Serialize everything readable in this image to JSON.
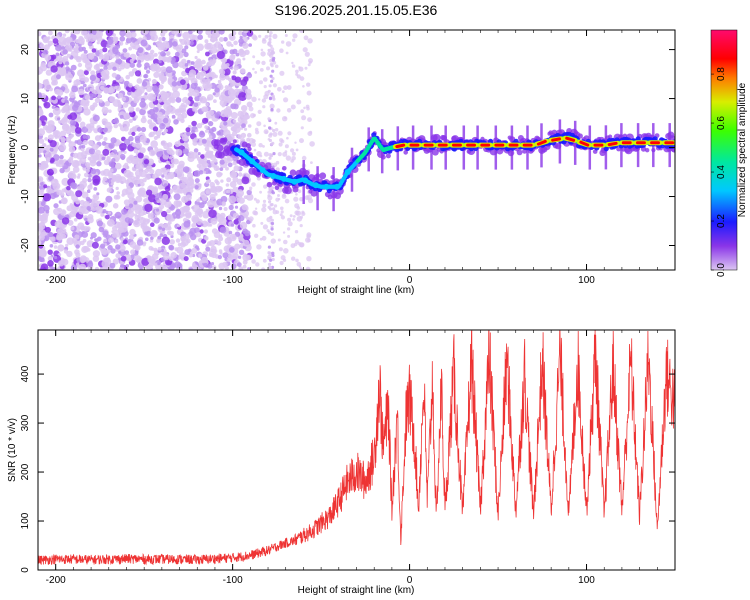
{
  "title": "S196.2025.201.15.05.E36",
  "chart_data": [
    {
      "type": "heatmap",
      "xlabel": "Height of straight line (km)",
      "ylabel": "Frequency (Hz)",
      "xlim": [
        -210,
        150
      ],
      "ylim": [
        -25,
        24
      ],
      "xticks": [
        -200,
        -100,
        0,
        100
      ],
      "yticks": [
        -20,
        -10,
        0,
        10,
        20
      ],
      "ridge": {
        "x": [
          -100,
          -95,
          -90,
          -85,
          -80,
          -75,
          -70,
          -65,
          -60,
          -55,
          -50,
          -45,
          -40,
          -35,
          -30,
          -25,
          -20,
          -15,
          -10,
          -5,
          0,
          10,
          20,
          30,
          40,
          50,
          60,
          70,
          80,
          90,
          100,
          110,
          120,
          130,
          140,
          150
        ],
        "y": [
          0,
          -1,
          -2.5,
          -4,
          -5.5,
          -6,
          -6.5,
          -7,
          -6.5,
          -7.5,
          -8,
          -8,
          -8,
          -5,
          -3,
          -1,
          2,
          -0.5,
          0,
          0.5,
          0.5,
          0.5,
          0.5,
          0.5,
          0.5,
          0.5,
          0.5,
          0.5,
          1.5,
          2,
          0.5,
          0.5,
          1,
          1,
          1,
          1
        ]
      },
      "colorbar": {
        "label": "Normalized spectral amplitude",
        "ticks": [
          "0.0",
          "0.2",
          "0.4",
          "0.6",
          "0.8"
        ],
        "range": [
          0,
          0.98
        ],
        "colors": [
          "#dcc6f2",
          "#8a35e8",
          "#1b1bff",
          "#00c8ff",
          "#00e8a0",
          "#3cff00",
          "#d8ee00",
          "#ff7a00",
          "#ff0000",
          "#ff0a6e"
        ]
      }
    },
    {
      "type": "line",
      "xlabel": "Height of straight line (km)",
      "ylabel": "SNR (10 * v/v)",
      "xlim": [
        -210,
        150
      ],
      "ylim": [
        0,
        490
      ],
      "xticks": [
        -200,
        -100,
        0,
        100
      ],
      "yticks": [
        0,
        100,
        200,
        300,
        400
      ],
      "color": "#ee3333",
      "series": [
        {
          "x": [
            -210,
            -200,
            -190,
            -180,
            -170,
            -160,
            -150,
            -140,
            -130,
            -120,
            -110,
            -100,
            -90,
            -85,
            -80,
            -75,
            -70,
            -65,
            -60,
            -55,
            -50,
            -45,
            -40,
            -35,
            -30,
            -25,
            -20,
            -17,
            -15,
            -12,
            -10,
            -7,
            -5,
            -2,
            0,
            3,
            5,
            8,
            10,
            13,
            15,
            18,
            20,
            25,
            30,
            35,
            40,
            45,
            50,
            55,
            60,
            65,
            70,
            75,
            80,
            85,
            90,
            95,
            100,
            105,
            110,
            115,
            120,
            125,
            130,
            135,
            140,
            145,
            150
          ],
          "values": [
            20,
            22,
            22,
            21,
            22,
            23,
            22,
            22,
            22,
            21,
            23,
            25,
            30,
            35,
            40,
            48,
            55,
            60,
            70,
            80,
            95,
            110,
            140,
            180,
            200,
            180,
            230,
            380,
            250,
            330,
            120,
            320,
            60,
            310,
            350,
            260,
            120,
            380,
            140,
            390,
            100,
            370,
            120,
            400,
            110,
            430,
            120,
            440,
            110,
            430,
            120,
            400,
            110,
            430,
            120,
            440,
            110,
            430,
            120,
            440,
            110,
            420,
            120,
            430,
            110,
            440,
            80,
            400,
            340
          ]
        }
      ]
    }
  ]
}
